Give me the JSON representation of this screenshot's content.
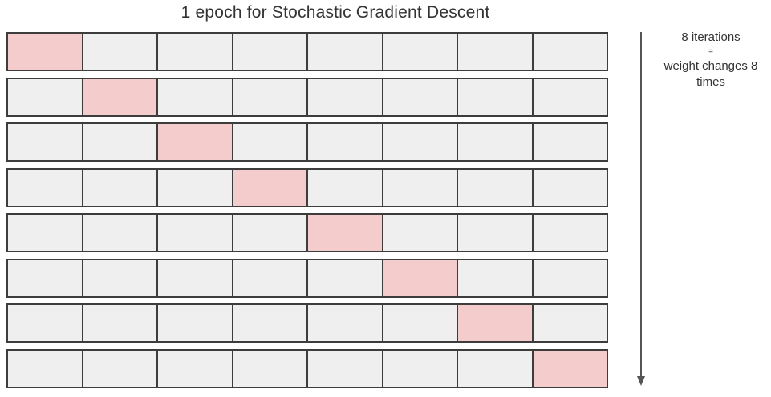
{
  "title": "1 epoch for Stochastic Gradient Descent",
  "iterations": 8,
  "batches_per_row": 8,
  "highlight_color": "#f4cccc",
  "cell_color": "#efefef",
  "note": {
    "line1": "8 iterations",
    "line2": "=",
    "line3": "weight changes 8",
    "line4": "times"
  },
  "arrow_direction": "down"
}
